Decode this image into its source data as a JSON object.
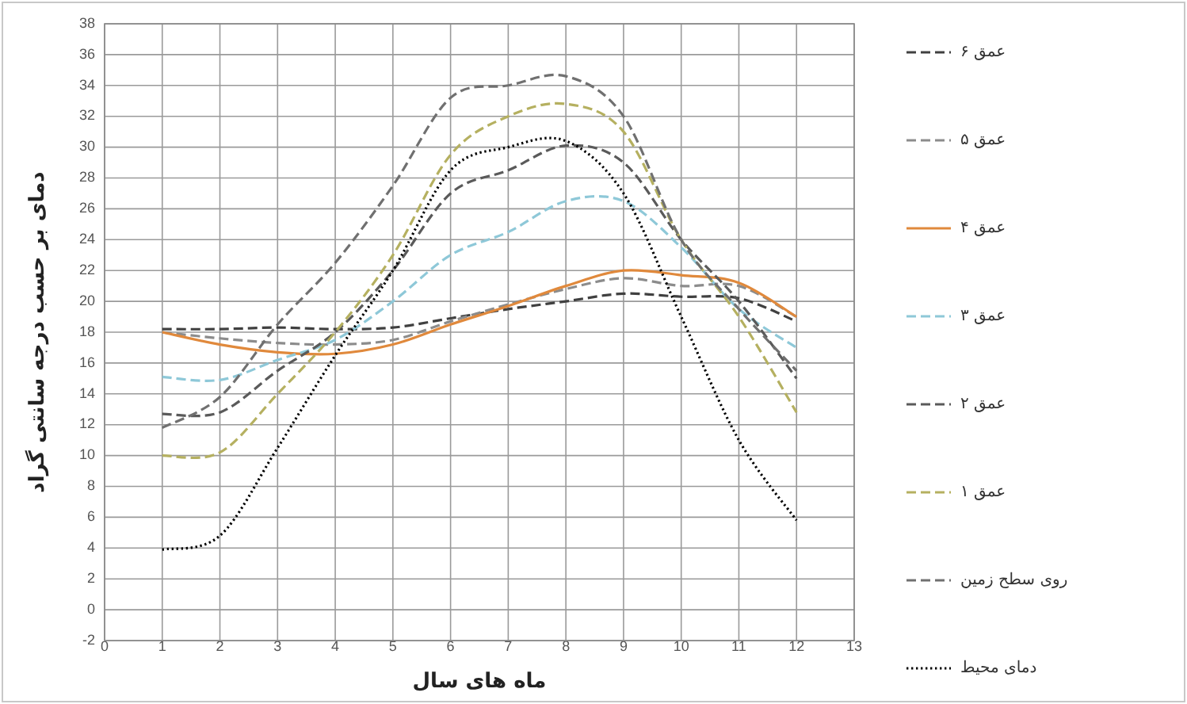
{
  "chart_data": {
    "type": "line",
    "xlabel": "ماه های سال",
    "ylabel": "دمای بر حسب درجه سانتی گراد",
    "x": [
      1,
      2,
      3,
      4,
      5,
      6,
      7,
      8,
      9,
      10,
      11,
      12
    ],
    "series": [
      {
        "name": "عمق ۶",
        "color": "#404040",
        "line_style": "dashed",
        "values": [
          18.2,
          18.2,
          18.3,
          18.2,
          18.3,
          18.9,
          19.5,
          20.0,
          20.5,
          20.3,
          20.2,
          18.7
        ]
      },
      {
        "name": "عمق ۵",
        "color": "#8c8c8c",
        "line_style": "dashed",
        "values": [
          18.0,
          17.6,
          17.3,
          17.2,
          17.5,
          18.7,
          19.8,
          20.8,
          21.5,
          21.0,
          21.0,
          19.0
        ]
      },
      {
        "name": "عمق ۴",
        "color": "#e0893c",
        "line_style": "solid",
        "values": [
          18.0,
          17.2,
          16.7,
          16.6,
          17.2,
          18.5,
          19.7,
          21.0,
          22.0,
          21.7,
          21.2,
          19.0
        ]
      },
      {
        "name": "عمق ۳",
        "color": "#8ec8d8",
        "line_style": "dashed",
        "values": [
          15.1,
          14.9,
          16.2,
          17.5,
          20.0,
          23.0,
          24.5,
          26.5,
          26.5,
          23.5,
          19.5,
          17.0
        ]
      },
      {
        "name": "عمق ۲",
        "color": "#5a5a5a",
        "line_style": "dashed",
        "values": [
          12.7,
          12.8,
          15.5,
          18.0,
          22.0,
          27.0,
          28.5,
          30.1,
          29.0,
          24.0,
          20.0,
          15.0
        ]
      },
      {
        "name": "عمق ۱",
        "color": "#b5b060",
        "line_style": "dashed",
        "values": [
          10.0,
          10.2,
          14.0,
          18.0,
          23.0,
          29.5,
          32.0,
          32.8,
          31.0,
          24.0,
          19.0,
          12.8
        ]
      },
      {
        "name": "روی سطح زمین",
        "color": "#707070",
        "line_style": "dashed",
        "values": [
          11.8,
          13.8,
          18.5,
          22.5,
          27.5,
          33.2,
          34.0,
          34.6,
          32.0,
          24.0,
          19.5,
          15.5
        ]
      },
      {
        "name": "دمای محیط",
        "color": "#000000",
        "line_style": "dotted",
        "values": [
          3.9,
          4.8,
          10.5,
          16.5,
          22.0,
          28.5,
          30.0,
          30.4,
          27.0,
          19.0,
          11.0,
          5.8
        ]
      }
    ],
    "xlim": [
      0,
      13
    ],
    "xticks": [
      0,
      1,
      2,
      3,
      4,
      5,
      6,
      7,
      8,
      9,
      10,
      11,
      12,
      13
    ],
    "ylim": [
      -2,
      38
    ],
    "yticks": [
      -2,
      0,
      2,
      4,
      6,
      8,
      10,
      12,
      14,
      16,
      18,
      20,
      22,
      24,
      26,
      28,
      30,
      32,
      34,
      36,
      38
    ],
    "grid": true,
    "legend": "right"
  }
}
